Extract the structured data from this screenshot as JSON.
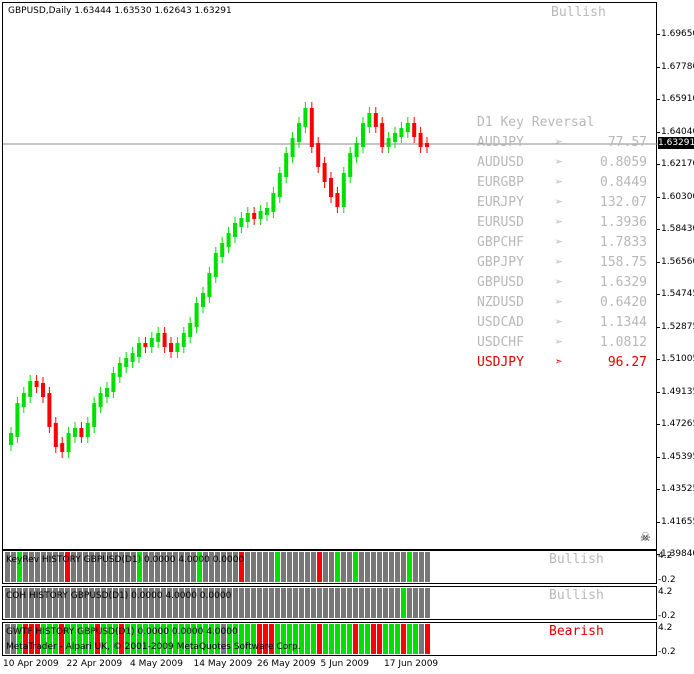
{
  "chart_title": "GBPUSD,Daily  1.63444 1.63530 1.62643 1.63291",
  "main_signal": "Bullish",
  "last_price": "1.63291",
  "price_axis": [
    "1.69650",
    "1.67780",
    "1.65910",
    "1.64040",
    "1.62170",
    "1.60300",
    "1.58430",
    "1.56560",
    "1.54745",
    "1.52875",
    "1.51005",
    "1.49135",
    "1.47265",
    "1.45395",
    "1.43525",
    "1.41655",
    "1.39840"
  ],
  "key_reversal": {
    "title": "D1 Key Reversal",
    "rows": [
      {
        "symbol": "AUDJPY",
        "arrow": "➢",
        "value": "77.57",
        "color": "#b8b8b8"
      },
      {
        "symbol": "AUDUSD",
        "arrow": "➢",
        "value": "0.8059",
        "color": "#b8b8b8"
      },
      {
        "symbol": "EURGBP",
        "arrow": "➢",
        "value": "0.8449",
        "color": "#b8b8b8"
      },
      {
        "symbol": "EURJPY",
        "arrow": "➢",
        "value": "132.07",
        "color": "#b8b8b8"
      },
      {
        "symbol": "EURUSD",
        "arrow": "➢",
        "value": "1.3936",
        "color": "#b8b8b8"
      },
      {
        "symbol": "GBPCHF",
        "arrow": "➢",
        "value": "1.7833",
        "color": "#b8b8b8"
      },
      {
        "symbol": "GBPJPY",
        "arrow": "➢",
        "value": "158.75",
        "color": "#b8b8b8"
      },
      {
        "symbol": "GBPUSD",
        "arrow": "➢",
        "value": "1.6329",
        "color": "#b8b8b8"
      },
      {
        "symbol": "NZDUSD",
        "arrow": "➢",
        "value": "0.6420",
        "color": "#b8b8b8"
      },
      {
        "symbol": "USDCAD",
        "arrow": "➢",
        "value": "1.1344",
        "color": "#b8b8b8"
      },
      {
        "symbol": "USDCHF",
        "arrow": "➢",
        "value": "1.0812",
        "color": "#b8b8b8"
      },
      {
        "symbol": "USDJPY",
        "arrow": "➣",
        "value": "96.27",
        "color": "#e00000"
      }
    ]
  },
  "subwindows": [
    {
      "title": "KeyRev HISTORY GBPUSD(D1) 0.0000 4.0000 0.0000",
      "signal": "Bullish",
      "signal_color": "#b8b8b8",
      "axis_top": "4.2",
      "axis_bottom": "-0.2",
      "bars": "GGGGGGGGGGGGGGGGGGGGGGGGGGGGGGGGGLGGGGGGGGRGGGGGGGGLGGGLGGGGGGGGGGGGRGGGGGGGGGGGGGGGGGGGGGGGGGGGGGGGGGLGGGGGGGGGRGGGGGGGGGGGGLGGGRGGGGGGRGGGGGGRGGGGGLGGGGGGGG"
    },
    {
      "title": "COH HISTORY GBPUSD(D1) 0.0000 4.0000 0.0000",
      "signal": "Bullish",
      "signal_color": "#b8b8b8",
      "axis_top": "4.2",
      "axis_bottom": "-0.2",
      "bars": ""
    },
    {
      "title": "GWTF HISTORY GBPUSD(D1) 0.0000 0.0000 4.0000",
      "signal": "Bearish",
      "signal_color": "#e00000",
      "axis_top": "4.2",
      "axis_bottom": "-0.2",
      "bars": ""
    }
  ],
  "subwindow_bars": [
    [
      "G",
      "G",
      "L",
      "G",
      "G",
      "G",
      "G",
      "G",
      "G",
      "G",
      "R",
      "G",
      "G",
      "G",
      "G",
      "G",
      "G",
      "G",
      "G",
      "G",
      "G",
      "G",
      "L",
      "G",
      "G",
      "G",
      "G",
      "G",
      "G",
      "G",
      "G",
      "G",
      "L",
      "G",
      "G",
      "G",
      "G",
      "G",
      "G",
      "R",
      "G",
      "G",
      "G",
      "G",
      "G",
      "L",
      "G",
      "G",
      "G",
      "G",
      "G",
      "G",
      "R",
      "G",
      "G",
      "L",
      "G",
      "G",
      "L",
      "G",
      "G",
      "G",
      "G",
      "G",
      "G",
      "G",
      "G",
      "L",
      "G",
      "G",
      "G"
    ],
    [
      "G",
      "G",
      "G",
      "G",
      "G",
      "G",
      "G",
      "G",
      "G",
      "G",
      "G",
      "G",
      "G",
      "G",
      "G",
      "G",
      "G",
      "G",
      "G",
      "G",
      "G",
      "G",
      "G",
      "G",
      "G",
      "G",
      "G",
      "G",
      "G",
      "G",
      "G",
      "G",
      "G",
      "G",
      "G",
      "G",
      "G",
      "G",
      "G",
      "G",
      "G",
      "G",
      "G",
      "G",
      "G",
      "G",
      "G",
      "G",
      "G",
      "G",
      "G",
      "G",
      "G",
      "G",
      "G",
      "G",
      "G",
      "G",
      "G",
      "G",
      "G",
      "G",
      "G",
      "G",
      "G",
      "G",
      "L",
      "G",
      "G",
      "G",
      "G"
    ],
    [
      "G",
      "G",
      "L",
      "R",
      "R",
      "R",
      "L",
      "L",
      "L",
      "R",
      "L",
      "L",
      "L",
      "L",
      "L",
      "R",
      "L",
      "L",
      "L",
      "R",
      "L",
      "L",
      "L",
      "L",
      "L",
      "L",
      "L",
      "L",
      "L",
      "L",
      "L",
      "L",
      "L",
      "L",
      "L",
      "L",
      "G",
      "L",
      "L",
      "L",
      "L",
      "L",
      "R",
      "R",
      "R",
      "L",
      "L",
      "L",
      "L",
      "L",
      "L",
      "L",
      "R",
      "L",
      "L",
      "L",
      "L",
      "L",
      "R",
      "L",
      "L",
      "R",
      "R",
      "L",
      "L",
      "L",
      "R",
      "L",
      "L",
      "G",
      "R"
    ]
  ],
  "copyright": "MetaTrader - Alpari UK, © 2001-2009 MetaQuotes Software Corp.",
  "dates": [
    "10 Apr 2009",
    "22 Apr 2009",
    "4 May 2009",
    "14 May 2009",
    "26 May 2009",
    "5 Jun 2009",
    "17 Jun 2009"
  ],
  "colors": {
    "bull": "#00e000",
    "bear": "#ff0000",
    "gray_bar": "#777777",
    "neutral_text": "#b8b8b8",
    "alert": "#e00000"
  }
}
